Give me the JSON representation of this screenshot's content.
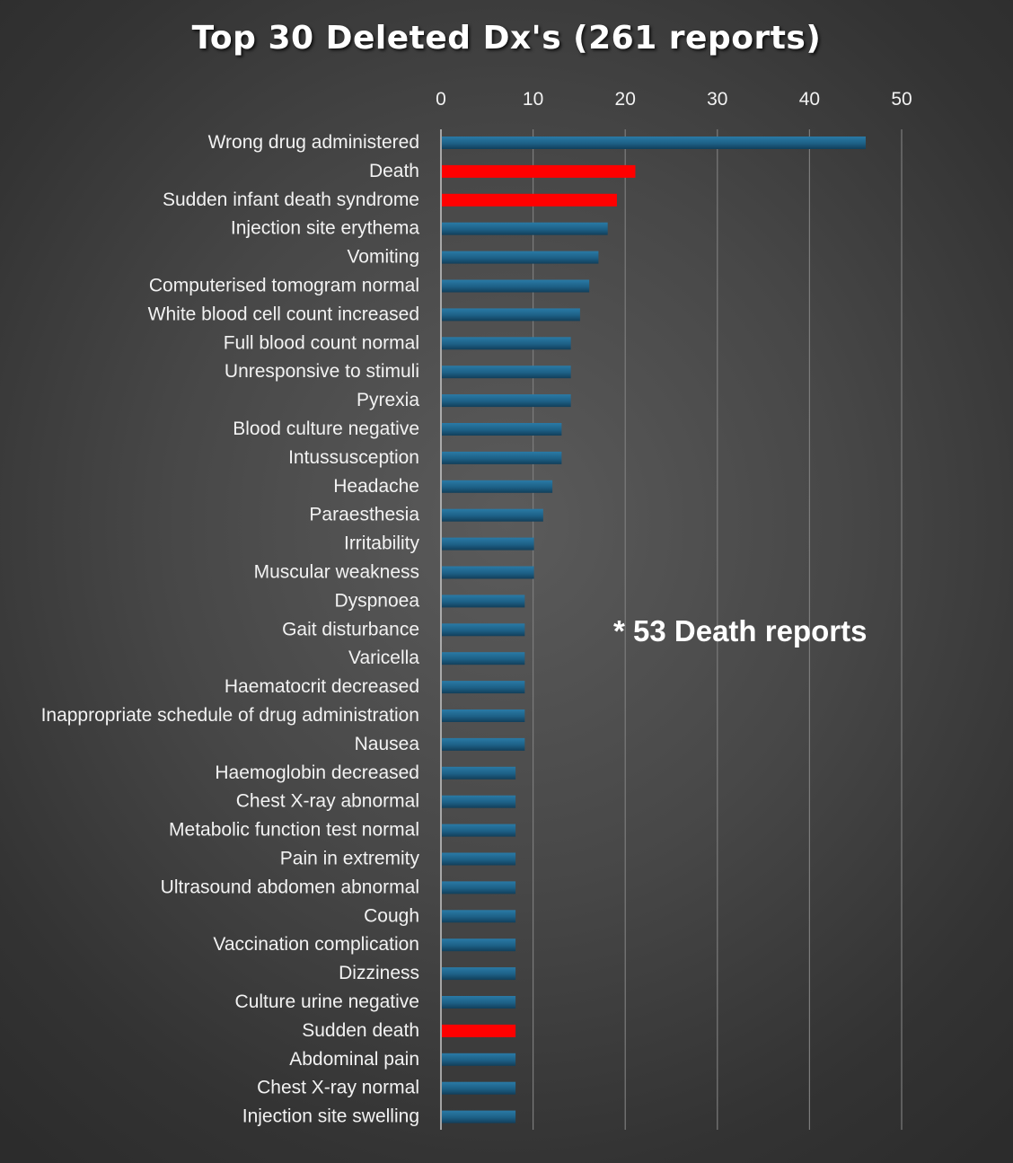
{
  "chart_data": {
    "type": "bar",
    "orientation": "horizontal",
    "title": "Top 30 Deleted Dx's (261 reports)",
    "xlabel": "",
    "ylabel": "",
    "xlim": [
      0,
      50
    ],
    "x_ticks": [
      "0",
      "10",
      "20",
      "30",
      "40",
      "50"
    ],
    "grid": true,
    "legend": "none",
    "categories": [
      "Wrong drug administered",
      "Death",
      "Sudden infant death syndrome",
      "Injection site erythema",
      "Vomiting",
      "Computerised tomogram normal",
      "White blood cell count increased",
      "Full blood count normal",
      "Unresponsive to stimuli",
      "Pyrexia",
      "Blood culture negative",
      "Intussusception",
      "Headache",
      "Paraesthesia",
      "Irritability",
      "Muscular weakness",
      "Dyspnoea",
      "Gait disturbance",
      "Varicella",
      "Haematocrit decreased",
      "Inappropriate schedule of drug administration",
      "Nausea",
      "Haemoglobin decreased",
      "Chest X-ray abnormal",
      "Metabolic function test normal",
      "Pain in extremity",
      "Ultrasound abdomen abnormal",
      "Cough",
      "Vaccination complication",
      "Dizziness",
      "Culture urine negative",
      "Sudden death",
      "Abdominal pain",
      "Chest X-ray normal",
      "Injection site swelling"
    ],
    "values": [
      46,
      21,
      19,
      18,
      17,
      16,
      15,
      14,
      14,
      14,
      13,
      13,
      12,
      11,
      10,
      10,
      9,
      9,
      9,
      9,
      9,
      9,
      8,
      8,
      8,
      8,
      8,
      8,
      8,
      8,
      8,
      8,
      8,
      8,
      8
    ],
    "highlighted": [
      "Death",
      "Sudden infant death syndrome",
      "Sudden death"
    ],
    "annotation": "* 53 Death reports",
    "colors": {
      "bar": "#1d6086",
      "highlight": "#ff0000",
      "grid": "#7c7c7c",
      "axis": "#c8c8c8",
      "text": "#f2f2f2"
    }
  }
}
